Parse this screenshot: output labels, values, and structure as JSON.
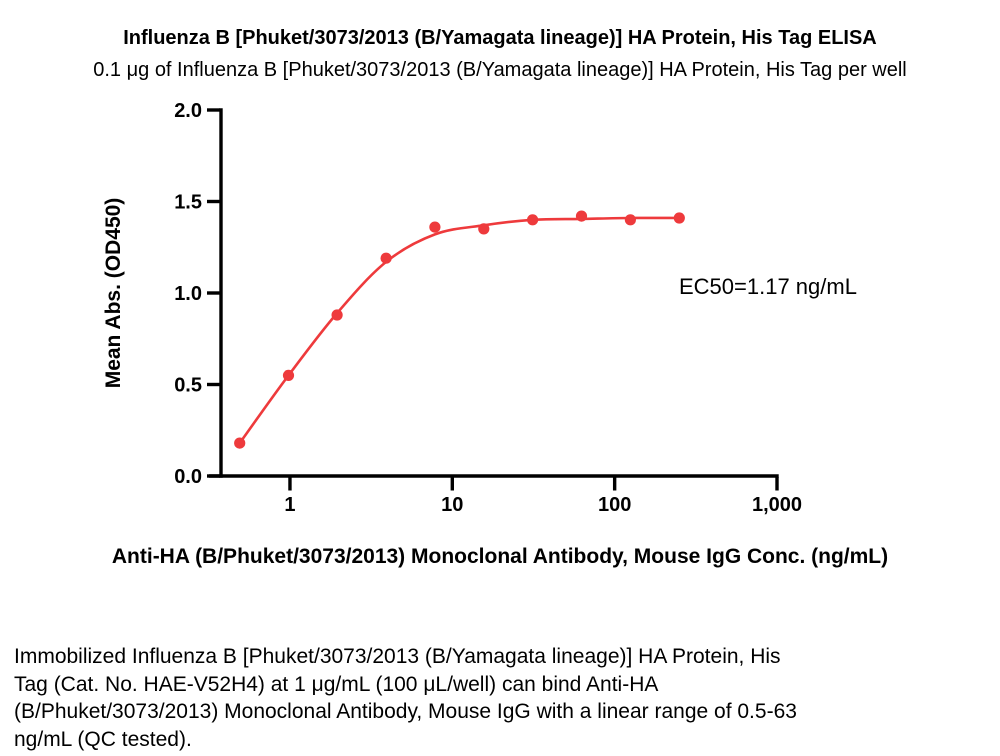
{
  "header": {
    "title": "Influenza B [Phuket/3073/2013 (B/Yamagata lineage)] HA Protein, His Tag ELISA",
    "subtitle": "0.1 μg of Influenza B [Phuket/3073/2013 (B/Yamagata lineage)] HA Protein, His Tag per well"
  },
  "chart_data": {
    "type": "scatter",
    "title": "Influenza B [Phuket/3073/2013 (B/Yamagata lineage)] HA Protein, His Tag ELISA",
    "xlabel": "Anti-HA (B/Phuket/3073/2013) Monoclonal Antibody, Mouse IgG Conc. (ng/mL)",
    "ylabel": "Mean Abs. (OD450)",
    "xscale": "log",
    "xlim": [
      0.376,
      1000
    ],
    "ylim": [
      0,
      2
    ],
    "grid": false,
    "legend": "none",
    "x": [
      0.49,
      0.98,
      1.95,
      3.91,
      7.81,
      15.63,
      31.25,
      62.5,
      125,
      250
    ],
    "series": [
      {
        "name": "Mean Abs. (OD450)",
        "values": [
          0.18,
          0.55,
          0.88,
          1.19,
          1.36,
          1.35,
          1.4,
          1.42,
          1.4,
          1.41
        ]
      }
    ],
    "fit_curve": {
      "x": [
        0.49,
        0.98,
        1.95,
        3.91,
        7.81,
        15.63,
        31.25,
        62.5,
        125,
        250
      ],
      "y": [
        0.18,
        0.55,
        0.89,
        1.17,
        1.32,
        1.37,
        1.4,
        1.405,
        1.41,
        1.41
      ]
    },
    "xticks": [
      {
        "value": 1,
        "label": "1"
      },
      {
        "value": 10,
        "label": "10"
      },
      {
        "value": 100,
        "label": "100"
      },
      {
        "value": 1000,
        "label": "1,000"
      }
    ],
    "yticks": [
      {
        "value": 0.0,
        "label": "0.0"
      },
      {
        "value": 0.5,
        "label": "0.5"
      },
      {
        "value": 1.0,
        "label": "1.0"
      },
      {
        "value": 1.5,
        "label": "1.5"
      },
      {
        "value": 2.0,
        "label": "2.0"
      }
    ],
    "annotation": "EC50=1.17 ng/mL",
    "point_color": "#ee3a3c",
    "line_color": "#ee3a3c",
    "axis_color": "#000000"
  },
  "footer": {
    "lines": [
      "Immobilized Influenza B [Phuket/3073/2013 (B/Yamagata lineage)] HA Protein, His",
      "Tag (Cat. No. HAE-V52H4) at 1 μg/mL (100 μL/well) can bind Anti-HA",
      "(B/Phuket/3073/2013) Monoclonal Antibody, Mouse IgG with a linear range of 0.5-63",
      "ng/mL (QC tested)."
    ]
  }
}
